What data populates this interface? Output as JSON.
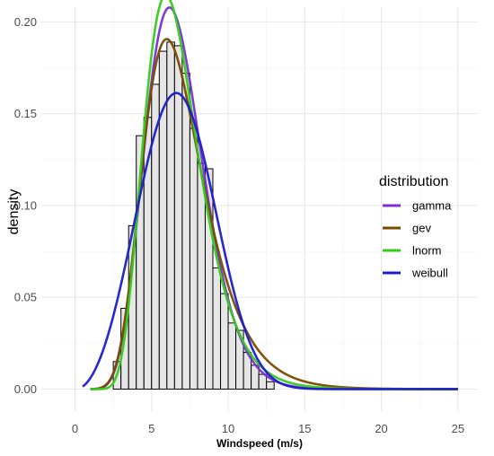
{
  "chart_data": {
    "type": "bar",
    "xlabel": "Windspeed (m/s)",
    "ylabel": "density",
    "xlim": [
      -2.2,
      26.3
    ],
    "ylim": [
      -0.012,
      0.208
    ],
    "x_ticks": [
      0,
      5,
      10,
      15,
      20,
      25
    ],
    "y_ticks": [
      0.0,
      0.05,
      0.1,
      0.15,
      0.2
    ],
    "x_tick_labels": [
      "0",
      "5",
      "10",
      "15",
      "20",
      "25"
    ],
    "y_tick_labels": [
      "0.00",
      "0.05",
      "0.10",
      "0.15",
      "0.20"
    ],
    "grid": true,
    "legend_position": "right",
    "legend_title": "distribution",
    "histogram": {
      "bin_width": 0.5,
      "fill": "#e6e6e6",
      "edge": "#000000",
      "bins": [
        {
          "x0": 2.5,
          "x1": 3.0,
          "value": 0.015
        },
        {
          "x0": 3.0,
          "x1": 3.5,
          "value": 0.044
        },
        {
          "x0": 3.5,
          "x1": 4.0,
          "value": 0.089
        },
        {
          "x0": 4.0,
          "x1": 4.5,
          "value": 0.138
        },
        {
          "x0": 4.5,
          "x1": 5.0,
          "value": 0.148
        },
        {
          "x0": 5.0,
          "x1": 5.5,
          "value": 0.166
        },
        {
          "x0": 5.5,
          "x1": 6.0,
          "value": 0.184
        },
        {
          "x0": 6.0,
          "x1": 6.5,
          "value": 0.189
        },
        {
          "x0": 6.5,
          "x1": 7.0,
          "value": 0.187
        },
        {
          "x0": 7.0,
          "x1": 7.5,
          "value": 0.172
        },
        {
          "x0": 7.5,
          "x1": 8.0,
          "value": 0.142
        },
        {
          "x0": 8.0,
          "x1": 8.5,
          "value": 0.123
        },
        {
          "x0": 8.5,
          "x1": 9.0,
          "value": 0.12
        },
        {
          "x0": 9.0,
          "x1": 9.5,
          "value": 0.066
        },
        {
          "x0": 9.5,
          "x1": 10.0,
          "value": 0.052
        },
        {
          "x0": 10.0,
          "x1": 10.5,
          "value": 0.036
        },
        {
          "x0": 10.5,
          "x1": 11.0,
          "value": 0.032
        },
        {
          "x0": 11.0,
          "x1": 11.5,
          "value": 0.02
        },
        {
          "x0": 11.5,
          "x1": 12.0,
          "value": 0.013
        },
        {
          "x0": 12.0,
          "x1": 12.5,
          "value": 0.008
        },
        {
          "x0": 12.5,
          "x1": 13.0,
          "value": 0.004
        }
      ]
    },
    "series": [
      {
        "name": "gamma",
        "color": "#7b2fd4",
        "dist": "gamma",
        "params": {
          "shape": 11.48,
          "rate": 1.7
        },
        "x_range": [
          1.0,
          25.0
        ]
      },
      {
        "name": "gev",
        "color": "#7a4a00",
        "dist": "gev",
        "params": {
          "loc": 5.95,
          "scale": 1.93,
          "shape": -0.02
        },
        "x_range": [
          1.0,
          25.0
        ]
      },
      {
        "name": "lnorm",
        "color": "#33cc1a",
        "dist": "lnorm",
        "params": {
          "meanlog": 1.87,
          "sdlog": 0.3
        },
        "x_range": [
          1.0,
          25.0
        ]
      },
      {
        "name": "weibull",
        "color": "#1c1ccc",
        "dist": "weibull",
        "params": {
          "shape": 3.1,
          "scale": 7.5
        },
        "x_range": [
          0.5,
          25.0
        ]
      }
    ]
  }
}
